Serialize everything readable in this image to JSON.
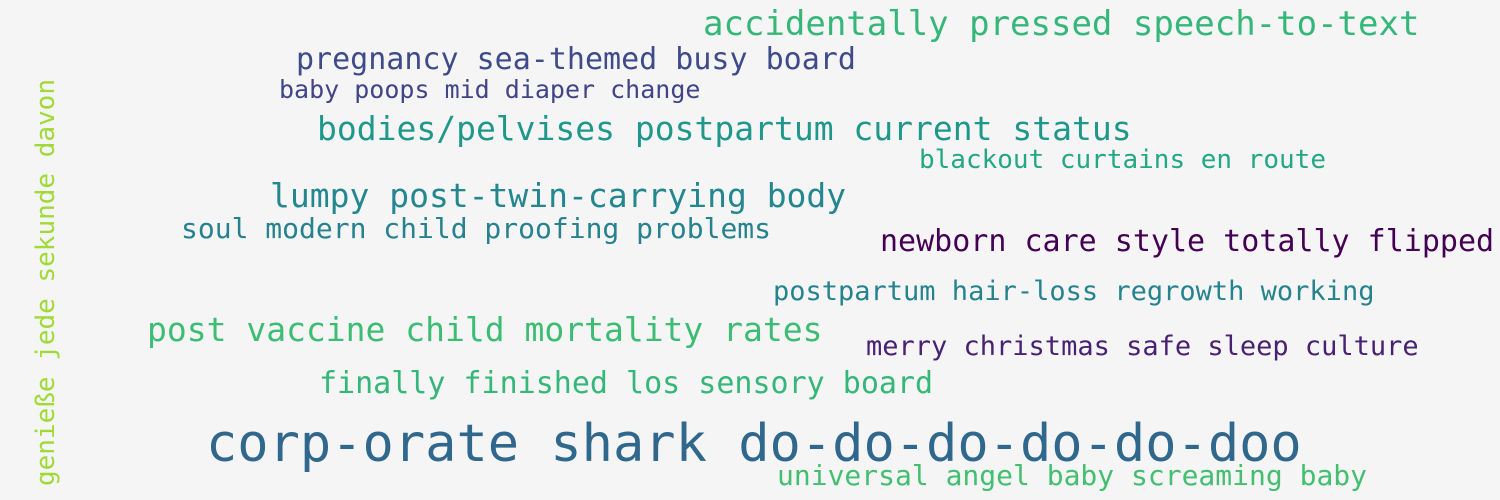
{
  "words": [
    {
      "id": "w1",
      "text": "accidentally pressed speech-to-text",
      "color": "#35b779"
    },
    {
      "id": "w2",
      "text": "pregnancy sea-themed busy board",
      "color": "#3e4a89"
    },
    {
      "id": "w3",
      "text": "baby poops mid diaper change",
      "color": "#414487"
    },
    {
      "id": "w4",
      "text": "bodies/pelvises postpartum current status",
      "color": "#1f988b"
    },
    {
      "id": "w5",
      "text": "blackout curtains en route",
      "color": "#22a884"
    },
    {
      "id": "w6",
      "text": "lumpy post-twin-carrying body",
      "color": "#24868e"
    },
    {
      "id": "w7",
      "text": "soul modern child proofing problems",
      "color": "#26828e"
    },
    {
      "id": "w8",
      "text": "newborn care style totally flipped",
      "color": "#440154"
    },
    {
      "id": "w9",
      "text": "postpartum hair-loss regrowth working",
      "color": "#25838e"
    },
    {
      "id": "w10",
      "text": "post vaccine child mortality rates",
      "color": "#3dbc74"
    },
    {
      "id": "w11",
      "text": "merry christmas safe sleep culture",
      "color": "#482173"
    },
    {
      "id": "w12",
      "text": "finally finished los sensory board",
      "color": "#35b779"
    },
    {
      "id": "w13",
      "text": "corp-orate shark do-do-do-do-do-doo",
      "color": "#30678d"
    },
    {
      "id": "w14",
      "text": "universal angel baby screaming baby",
      "color": "#44bf70"
    },
    {
      "id": "w15",
      "text": "genieße jede sekunde davon",
      "color": "#a0da39"
    }
  ]
}
